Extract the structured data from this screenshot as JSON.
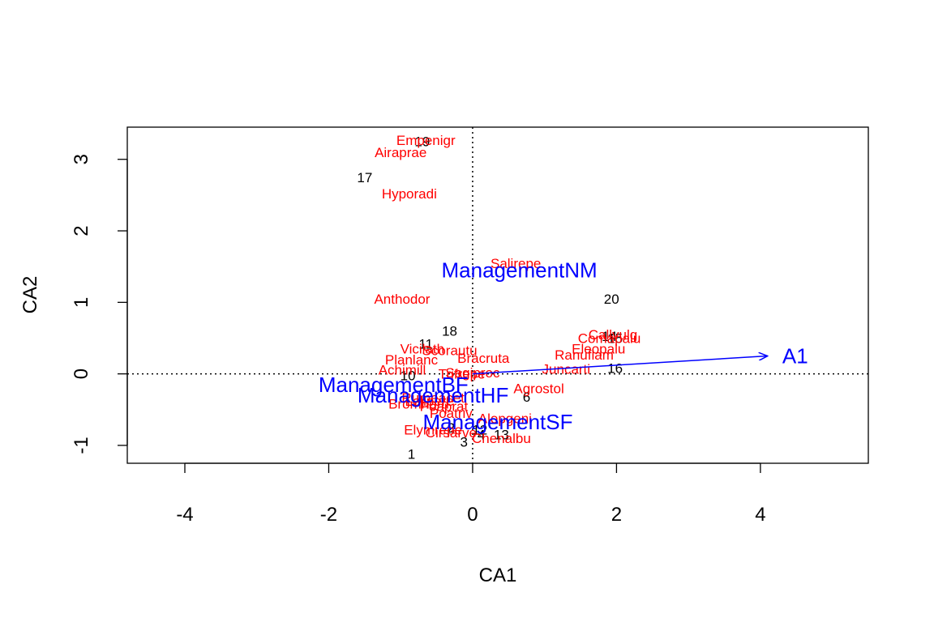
{
  "chart_data": {
    "type": "scatter",
    "xlabel": "CA1",
    "ylabel": "CA2",
    "xlim": [
      -4.8,
      5.5
    ],
    "ylim": [
      -1.25,
      3.45
    ],
    "xticks": [
      -4,
      -2,
      0,
      2,
      4
    ],
    "yticks": [
      -1,
      0,
      1,
      2,
      3
    ],
    "grid": false,
    "reference_lines": "dotted lines at x=0 and y=0",
    "colors": {
      "sites": "#000000",
      "species": "#ff0000",
      "constraints": "#0000ff"
    },
    "sites": [
      {
        "label": "19",
        "x": -0.7,
        "y": 3.25
      },
      {
        "label": "17",
        "x": -1.5,
        "y": 2.75
      },
      {
        "label": "20",
        "x": 1.93,
        "y": 1.05
      },
      {
        "label": "18",
        "x": -0.32,
        "y": 0.6
      },
      {
        "label": "14",
        "x": 1.9,
        "y": 0.53
      },
      {
        "label": "15",
        "x": 1.98,
        "y": 0.5
      },
      {
        "label": "11",
        "x": -0.65,
        "y": 0.42
      },
      {
        "label": "16",
        "x": 1.98,
        "y": 0.08
      },
      {
        "label": "10",
        "x": -0.9,
        "y": -0.02
      },
      {
        "label": "6",
        "x": 0.75,
        "y": -0.32
      },
      {
        "label": "2",
        "x": -0.3,
        "y": -0.75
      },
      {
        "label": "12",
        "x": 0.1,
        "y": -0.78
      },
      {
        "label": "4",
        "x": 0.12,
        "y": -0.85
      },
      {
        "label": "13",
        "x": 0.4,
        "y": -0.85
      },
      {
        "label": "3",
        "x": -0.12,
        "y": -0.95
      },
      {
        "label": "1",
        "x": -0.85,
        "y": -1.12
      }
    ],
    "species": [
      {
        "label": "Empenigr",
        "x": -0.65,
        "y": 3.27
      },
      {
        "label": "Airaprae",
        "x": -1.0,
        "y": 3.1
      },
      {
        "label": "Hyporadi",
        "x": -0.88,
        "y": 2.52
      },
      {
        "label": "Salirepe",
        "x": 0.6,
        "y": 1.55
      },
      {
        "label": "Anthodor",
        "x": -0.98,
        "y": 1.05
      },
      {
        "label": "Callvulg",
        "x": 1.95,
        "y": 0.55
      },
      {
        "label": "Comapalu",
        "x": 1.9,
        "y": 0.5
      },
      {
        "label": "Eleopalu",
        "x": 1.75,
        "y": 0.35
      },
      {
        "label": "Ranuflam",
        "x": 1.55,
        "y": 0.27
      },
      {
        "label": "Juncarti",
        "x": 1.3,
        "y": 0.07
      },
      {
        "label": "Vicilath",
        "x": -0.7,
        "y": 0.35
      },
      {
        "label": "Scorautu",
        "x": -0.32,
        "y": 0.33
      },
      {
        "label": "Planlanc",
        "x": -0.85,
        "y": 0.2
      },
      {
        "label": "Bracruta",
        "x": 0.15,
        "y": 0.22
      },
      {
        "label": "Achimill",
        "x": -0.98,
        "y": 0.06
      },
      {
        "label": "Sagiproc",
        "x": 0.0,
        "y": 0.02
      },
      {
        "label": "Trifrepe",
        "x": -0.15,
        "y": 0.0
      },
      {
        "label": "Agrostol",
        "x": 0.92,
        "y": -0.2
      },
      {
        "label": "Bromhord",
        "x": -0.75,
        "y": -0.42
      },
      {
        "label": "Rumeacet",
        "x": -0.55,
        "y": -0.33
      },
      {
        "label": "Lolipere",
        "x": -0.6,
        "y": -0.38
      },
      {
        "label": "Poatriv",
        "x": -0.3,
        "y": -0.55
      },
      {
        "label": "Poaprat",
        "x": -0.4,
        "y": -0.45
      },
      {
        "label": "Alopgeni",
        "x": 0.45,
        "y": -0.62
      },
      {
        "label": "Elymrepe",
        "x": -0.55,
        "y": -0.78
      },
      {
        "label": "Cirsarve",
        "x": -0.3,
        "y": -0.82
      },
      {
        "label": "Chenalbu",
        "x": 0.4,
        "y": -0.9
      }
    ],
    "constraints": [
      {
        "label": "ManagementNM",
        "x": 0.65,
        "y": 1.45
      },
      {
        "label": "ManagementBF",
        "x": -1.1,
        "y": -0.15
      },
      {
        "label": "ManagementHF",
        "x": -0.55,
        "y": -0.3
      },
      {
        "label": "ManagementSF",
        "x": 0.35,
        "y": -0.67
      }
    ],
    "vector": {
      "label": "A1",
      "x": 4.1,
      "y": 0.25
    }
  }
}
